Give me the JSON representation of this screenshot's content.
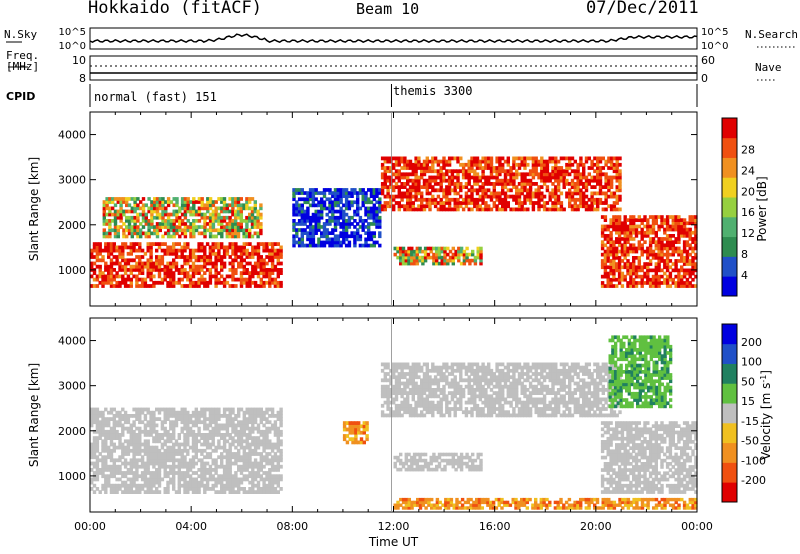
{
  "header": {
    "station": "Hokkaido (fitACF)",
    "beam": "Beam 10",
    "date": "07/Dec/2011"
  },
  "noise_panel": {
    "left_label": "N.Sky",
    "right_label": "N.Search",
    "left_ticks": [
      "10^5",
      "10^0"
    ],
    "right_ticks": [
      "10^5",
      "10^0"
    ]
  },
  "freq_panel": {
    "left_label_line1": "Freq.",
    "left_label_line2": "[MHz]",
    "right_label": "Nave",
    "left_ticks": [
      "10",
      "8"
    ],
    "right_ticks": [
      "60",
      "0"
    ]
  },
  "cpid_panel": {
    "label": "CPID",
    "modes": [
      {
        "name": "normal (fast) 151",
        "start": "00:00"
      },
      {
        "name": "themis 3300",
        "start": "11:55"
      }
    ]
  },
  "colors": {
    "power_scale": [
      "#0000e0",
      "#2050c8",
      "#2e8c50",
      "#50b070",
      "#96d040",
      "#f0d020",
      "#f09020",
      "#f05010",
      "#e00000"
    ],
    "velocity_scale": [
      "#e00000",
      "#f05010",
      "#f09020",
      "#f0c020",
      "#bfbfbf",
      "#60c040",
      "#208060",
      "#2050c8",
      "#0000e0"
    ],
    "ground_scatter": "#bfbfbf"
  },
  "chart_data": [
    {
      "type": "heatmap",
      "panel": "power",
      "ylabel": "Slant Range [km]",
      "yticks": [
        "1000",
        "2000",
        "3000",
        "4000"
      ],
      "ylim": [
        200,
        4500
      ],
      "xlim": [
        "00:00",
        "24:00"
      ],
      "colorbar_label": "Power [dB]",
      "colorbar_ticks": [
        "4",
        "8",
        "12",
        "16",
        "20",
        "24",
        "28"
      ],
      "colorbar_range": [
        0,
        30
      ],
      "regions": [
        {
          "t0": 0.0,
          "t1": 7.6,
          "r0": 600,
          "r1": 1600,
          "level": "high"
        },
        {
          "t0": 0.5,
          "t1": 6.8,
          "r0": 1700,
          "r1": 2600,
          "level": "mixed"
        },
        {
          "t0": 8.0,
          "t1": 11.5,
          "r0": 1500,
          "r1": 2800,
          "level": "low"
        },
        {
          "t0": 11.5,
          "t1": 21.0,
          "r0": 2300,
          "r1": 3500,
          "level": "high"
        },
        {
          "t0": 12.0,
          "t1": 15.5,
          "r0": 1100,
          "r1": 1500,
          "level": "mixed"
        },
        {
          "t0": 20.2,
          "t1": 24.0,
          "r0": 600,
          "r1": 2200,
          "level": "high"
        }
      ]
    },
    {
      "type": "heatmap",
      "panel": "velocity",
      "ylabel": "Slant Range [km]",
      "yticks": [
        "1000",
        "2000",
        "3000",
        "4000"
      ],
      "ylim": [
        200,
        4500
      ],
      "xlabel": "Time UT",
      "xticks": [
        "00:00",
        "04:00",
        "08:00",
        "12:00",
        "16:00",
        "20:00",
        "00:00"
      ],
      "xlim": [
        "00:00",
        "24:00"
      ],
      "colorbar_label": "Velocity [m s-1]",
      "colorbar_ticks": [
        "200",
        "100",
        "50",
        "15",
        "-15",
        "-50",
        "-100",
        "-200"
      ],
      "colorbar_range": [
        -250,
        250
      ],
      "regions": [
        {
          "t0": 0.0,
          "t1": 7.6,
          "r0": 600,
          "r1": 2500,
          "level": "ground"
        },
        {
          "t0": 11.5,
          "t1": 21.0,
          "r0": 2300,
          "r1": 3500,
          "level": "ground"
        },
        {
          "t0": 12.0,
          "t1": 15.5,
          "r0": 1100,
          "r1": 1500,
          "level": "ground"
        },
        {
          "t0": 20.2,
          "t1": 24.0,
          "r0": 600,
          "r1": 2200,
          "level": "ground"
        },
        {
          "t0": 12.0,
          "t1": 24.0,
          "r0": 250,
          "r1": 500,
          "level": "negative"
        },
        {
          "t0": 10.0,
          "t1": 11.0,
          "r0": 1700,
          "r1": 2200,
          "level": "negative"
        },
        {
          "t0": 20.5,
          "t1": 23.0,
          "r0": 2500,
          "r1": 4100,
          "level": "positive"
        }
      ]
    }
  ],
  "axis": {
    "time_label": "Time UT",
    "power_cb_unit": "Power [dB]",
    "velocity_cb_unit": "Velocity [m s",
    "velocity_cb_sup": "-1",
    "velocity_cb_close": "]"
  }
}
